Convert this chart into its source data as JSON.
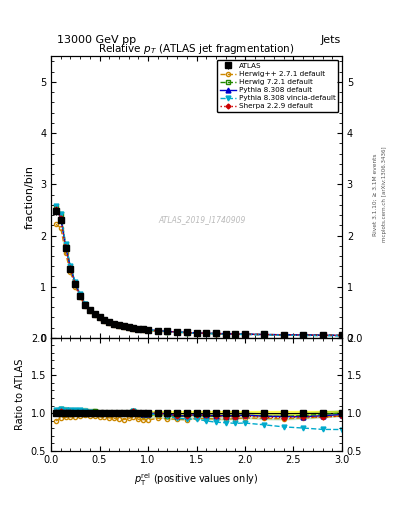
{
  "title_top": "13000 GeV pp",
  "title_right": "Jets",
  "plot_title": "Relative $p_T$ (ATLAS jet fragmentation)",
  "xlabel": "$p_\\mathrm{T}^\\mathrm{rel}$ (positive values only)",
  "ylabel_main": "fraction/bin",
  "ylabel_ratio": "Ratio to ATLAS",
  "watermark": "ATLAS_2019_I1740909",
  "right_label": "Rivet 3.1.10; ≥ 3.1M events",
  "right_label2": "mcplots.cern.ch [arXiv:1306.3436]",
  "x_data": [
    0.05,
    0.1,
    0.15,
    0.2,
    0.25,
    0.3,
    0.35,
    0.4,
    0.45,
    0.5,
    0.55,
    0.6,
    0.65,
    0.7,
    0.75,
    0.8,
    0.85,
    0.9,
    0.95,
    1.0,
    1.1,
    1.2,
    1.3,
    1.4,
    1.5,
    1.6,
    1.7,
    1.8,
    1.9,
    2.0,
    2.2,
    2.4,
    2.6,
    2.8,
    3.0
  ],
  "atlas_y": [
    2.48,
    2.3,
    1.75,
    1.35,
    1.05,
    0.82,
    0.65,
    0.54,
    0.46,
    0.4,
    0.35,
    0.31,
    0.28,
    0.25,
    0.23,
    0.21,
    0.19,
    0.18,
    0.17,
    0.16,
    0.14,
    0.13,
    0.12,
    0.11,
    0.1,
    0.095,
    0.09,
    0.085,
    0.08,
    0.075,
    0.07,
    0.065,
    0.06,
    0.055,
    0.05
  ],
  "herwig_pp_y": [
    2.22,
    2.15,
    1.65,
    1.28,
    1.0,
    0.79,
    0.63,
    0.52,
    0.44,
    0.38,
    0.33,
    0.29,
    0.26,
    0.23,
    0.21,
    0.195,
    0.18,
    0.165,
    0.155,
    0.145,
    0.13,
    0.12,
    0.11,
    0.1,
    0.093,
    0.088,
    0.083,
    0.078,
    0.074,
    0.07,
    0.065,
    0.06,
    0.056,
    0.052,
    0.048
  ],
  "herwig721_y": [
    2.55,
    2.42,
    1.82,
    1.39,
    1.08,
    0.84,
    0.67,
    0.55,
    0.47,
    0.4,
    0.35,
    0.31,
    0.28,
    0.25,
    0.23,
    0.21,
    0.195,
    0.18,
    0.165,
    0.155,
    0.138,
    0.125,
    0.115,
    0.105,
    0.097,
    0.091,
    0.086,
    0.081,
    0.077,
    0.073,
    0.067,
    0.062,
    0.058,
    0.054,
    0.05
  ],
  "pythia8_y": [
    2.52,
    2.35,
    1.78,
    1.37,
    1.06,
    0.83,
    0.66,
    0.54,
    0.46,
    0.4,
    0.35,
    0.31,
    0.28,
    0.25,
    0.23,
    0.21,
    0.195,
    0.18,
    0.168,
    0.158,
    0.14,
    0.128,
    0.116,
    0.106,
    0.098,
    0.092,
    0.087,
    0.082,
    0.077,
    0.073,
    0.067,
    0.062,
    0.057,
    0.053,
    0.049
  ],
  "pythia8v_y": [
    2.58,
    2.42,
    1.83,
    1.41,
    1.09,
    0.85,
    0.67,
    0.55,
    0.46,
    0.4,
    0.35,
    0.31,
    0.28,
    0.25,
    0.23,
    0.21,
    0.195,
    0.18,
    0.167,
    0.157,
    0.138,
    0.124,
    0.112,
    0.101,
    0.092,
    0.085,
    0.079,
    0.074,
    0.069,
    0.065,
    0.059,
    0.053,
    0.048,
    0.043,
    0.039
  ],
  "sherpa_y": [
    2.52,
    2.35,
    1.77,
    1.36,
    1.05,
    0.82,
    0.65,
    0.54,
    0.46,
    0.4,
    0.35,
    0.31,
    0.28,
    0.25,
    0.23,
    0.21,
    0.195,
    0.18,
    0.168,
    0.158,
    0.14,
    0.128,
    0.116,
    0.106,
    0.098,
    0.092,
    0.086,
    0.081,
    0.076,
    0.072,
    0.066,
    0.061,
    0.057,
    0.052,
    0.048
  ],
  "atlas_color": "#000000",
  "herwig_pp_color": "#cc8800",
  "herwig721_color": "#228800",
  "pythia8_color": "#0000cc",
  "pythia8v_color": "#00aacc",
  "sherpa_color": "#cc0000",
  "ylim_main": [
    0,
    5.5
  ],
  "ylim_ratio": [
    0.5,
    2.0
  ],
  "xlim": [
    0,
    3.0
  ],
  "yticks_main": [
    0,
    1,
    2,
    3,
    4,
    5
  ],
  "yticks_ratio": [
    0.5,
    1.0,
    1.5,
    2.0
  ],
  "atlas_error_pct": 0.03
}
